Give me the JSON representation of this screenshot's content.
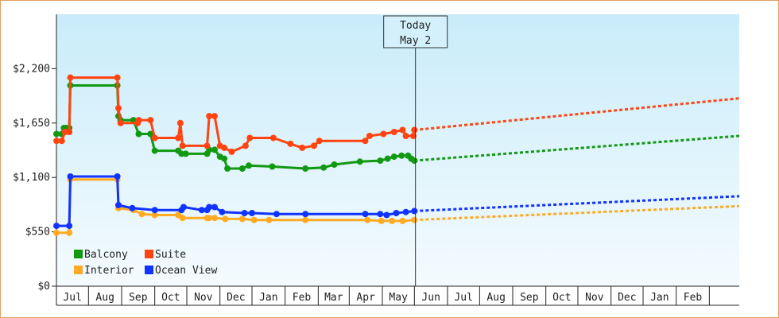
{
  "chart_data": {
    "type": "line",
    "title": "",
    "xlabel": "",
    "ylabel": "",
    "ylim": [
      0,
      2750
    ],
    "yticks": [
      {
        "value": 0,
        "label": "$0"
      },
      {
        "value": 550,
        "label": "$550"
      },
      {
        "value": 1100,
        "label": "$1,100"
      },
      {
        "value": 1650,
        "label": "$1,650"
      },
      {
        "value": 2200,
        "label": "$2,200"
      }
    ],
    "x_start": "2023-06-01",
    "x_end": "2025-03-01",
    "x_month_labels": [
      "Jul",
      "Aug",
      "Sep",
      "Oct",
      "Nov",
      "Dec",
      "Jan",
      "Feb",
      "Mar",
      "Apr",
      "May",
      "Jun",
      "Jul",
      "Aug",
      "Sep",
      "Oct",
      "Nov",
      "Dec",
      "Jan",
      "Feb"
    ],
    "today": {
      "date": "2024-05-02",
      "label_line1": "Today",
      "label_line2": "May 2"
    },
    "legend_position": "bottom-left",
    "series": [
      {
        "name": "Balcony",
        "color": "#119911",
        "points": [
          [
            "2023-06-01",
            1540
          ],
          [
            "2023-06-06",
            1540
          ],
          [
            "2023-06-08",
            1600
          ],
          [
            "2023-06-10",
            1600
          ],
          [
            "2023-06-13",
            1600
          ],
          [
            "2023-06-14",
            2030
          ],
          [
            "2023-07-28",
            2030
          ],
          [
            "2023-07-29",
            1720
          ],
          [
            "2023-07-31",
            1680
          ],
          [
            "2023-08-12",
            1680
          ],
          [
            "2023-08-17",
            1540
          ],
          [
            "2023-08-28",
            1540
          ],
          [
            "2023-09-01",
            1370
          ],
          [
            "2023-09-23",
            1370
          ],
          [
            "2023-09-26",
            1340
          ],
          [
            "2023-09-30",
            1340
          ],
          [
            "2023-10-20",
            1340
          ],
          [
            "2023-10-22",
            1380
          ],
          [
            "2023-10-27",
            1380
          ],
          [
            "2023-11-01",
            1310
          ],
          [
            "2023-11-05",
            1290
          ],
          [
            "2023-11-08",
            1190
          ],
          [
            "2023-11-22",
            1190
          ],
          [
            "2023-11-28",
            1220
          ],
          [
            "2023-12-20",
            1210
          ],
          [
            "2024-01-20",
            1190
          ],
          [
            "2024-02-06",
            1200
          ],
          [
            "2024-02-16",
            1230
          ],
          [
            "2024-03-11",
            1260
          ],
          [
            "2024-03-30",
            1270
          ],
          [
            "2024-04-06",
            1290
          ],
          [
            "2024-04-12",
            1310
          ],
          [
            "2024-04-19",
            1320
          ],
          [
            "2024-04-25",
            1320
          ],
          [
            "2024-04-28",
            1290
          ],
          [
            "2024-05-01",
            1270
          ]
        ],
        "forecast": [
          [
            "2024-05-01",
            1270
          ],
          [
            "2025-03-01",
            1520
          ]
        ]
      },
      {
        "name": "Suite",
        "color": "#ff4411",
        "points": [
          [
            "2023-06-01",
            1470
          ],
          [
            "2023-06-06",
            1470
          ],
          [
            "2023-06-09",
            1560
          ],
          [
            "2023-06-13",
            1560
          ],
          [
            "2023-06-14",
            2110
          ],
          [
            "2023-07-28",
            2110
          ],
          [
            "2023-07-29",
            1800
          ],
          [
            "2023-07-31",
            1650
          ],
          [
            "2023-08-16",
            1650
          ],
          [
            "2023-08-17",
            1680
          ],
          [
            "2023-08-28",
            1680
          ],
          [
            "2023-09-01",
            1500
          ],
          [
            "2023-09-23",
            1500
          ],
          [
            "2023-09-25",
            1650
          ],
          [
            "2023-09-27",
            1420
          ],
          [
            "2023-10-20",
            1420
          ],
          [
            "2023-10-22",
            1720
          ],
          [
            "2023-10-27",
            1720
          ],
          [
            "2023-11-01",
            1420
          ],
          [
            "2023-11-05",
            1400
          ],
          [
            "2023-11-12",
            1360
          ],
          [
            "2023-11-25",
            1420
          ],
          [
            "2023-11-29",
            1500
          ],
          [
            "2023-12-21",
            1500
          ],
          [
            "2024-01-06",
            1440
          ],
          [
            "2024-01-17",
            1400
          ],
          [
            "2024-01-28",
            1420
          ],
          [
            "2024-02-02",
            1470
          ],
          [
            "2024-03-16",
            1470
          ],
          [
            "2024-03-20",
            1520
          ],
          [
            "2024-04-02",
            1540
          ],
          [
            "2024-04-12",
            1560
          ],
          [
            "2024-04-20",
            1580
          ],
          [
            "2024-04-23",
            1520
          ],
          [
            "2024-04-30",
            1520
          ],
          [
            "2024-05-01",
            1580
          ]
        ],
        "forecast": [
          [
            "2024-05-01",
            1580
          ],
          [
            "2025-03-01",
            1900
          ]
        ]
      },
      {
        "name": "Interior",
        "color": "#ffaa22",
        "points": [
          [
            "2023-06-01",
            540
          ],
          [
            "2023-06-13",
            540
          ],
          [
            "2023-06-14",
            1080
          ],
          [
            "2023-07-28",
            1080
          ],
          [
            "2023-07-29",
            790
          ],
          [
            "2023-08-12",
            770
          ],
          [
            "2023-08-20",
            730
          ],
          [
            "2023-09-01",
            720
          ],
          [
            "2023-09-23",
            720
          ],
          [
            "2023-09-27",
            690
          ],
          [
            "2023-10-20",
            690
          ],
          [
            "2023-10-22",
            690
          ],
          [
            "2023-10-27",
            690
          ],
          [
            "2023-11-06",
            680
          ],
          [
            "2023-11-22",
            680
          ],
          [
            "2023-12-03",
            670
          ],
          [
            "2023-12-17",
            670
          ],
          [
            "2024-01-20",
            670
          ],
          [
            "2024-03-18",
            670
          ],
          [
            "2024-03-31",
            660
          ],
          [
            "2024-04-10",
            660
          ],
          [
            "2024-04-20",
            660
          ],
          [
            "2024-05-01",
            670
          ]
        ],
        "forecast": [
          [
            "2024-05-01",
            670
          ],
          [
            "2025-03-01",
            810
          ]
        ]
      },
      {
        "name": "Ocean View",
        "color": "#1133ff",
        "points": [
          [
            "2023-06-01",
            610
          ],
          [
            "2023-06-13",
            610
          ],
          [
            "2023-06-14",
            1110
          ],
          [
            "2023-07-28",
            1110
          ],
          [
            "2023-07-29",
            820
          ],
          [
            "2023-08-11",
            790
          ],
          [
            "2023-09-01",
            770
          ],
          [
            "2023-09-26",
            770
          ],
          [
            "2023-09-28",
            800
          ],
          [
            "2023-10-15",
            770
          ],
          [
            "2023-10-20",
            770
          ],
          [
            "2023-10-22",
            800
          ],
          [
            "2023-10-27",
            800
          ],
          [
            "2023-11-03",
            750
          ],
          [
            "2023-11-24",
            740
          ],
          [
            "2023-12-01",
            740
          ],
          [
            "2023-12-24",
            730
          ],
          [
            "2024-01-20",
            730
          ],
          [
            "2024-03-16",
            730
          ],
          [
            "2024-03-30",
            730
          ],
          [
            "2024-04-05",
            720
          ],
          [
            "2024-04-14",
            740
          ],
          [
            "2024-04-23",
            750
          ],
          [
            "2024-05-01",
            760
          ]
        ],
        "forecast": [
          [
            "2024-05-01",
            760
          ],
          [
            "2025-03-01",
            910
          ]
        ]
      }
    ]
  }
}
